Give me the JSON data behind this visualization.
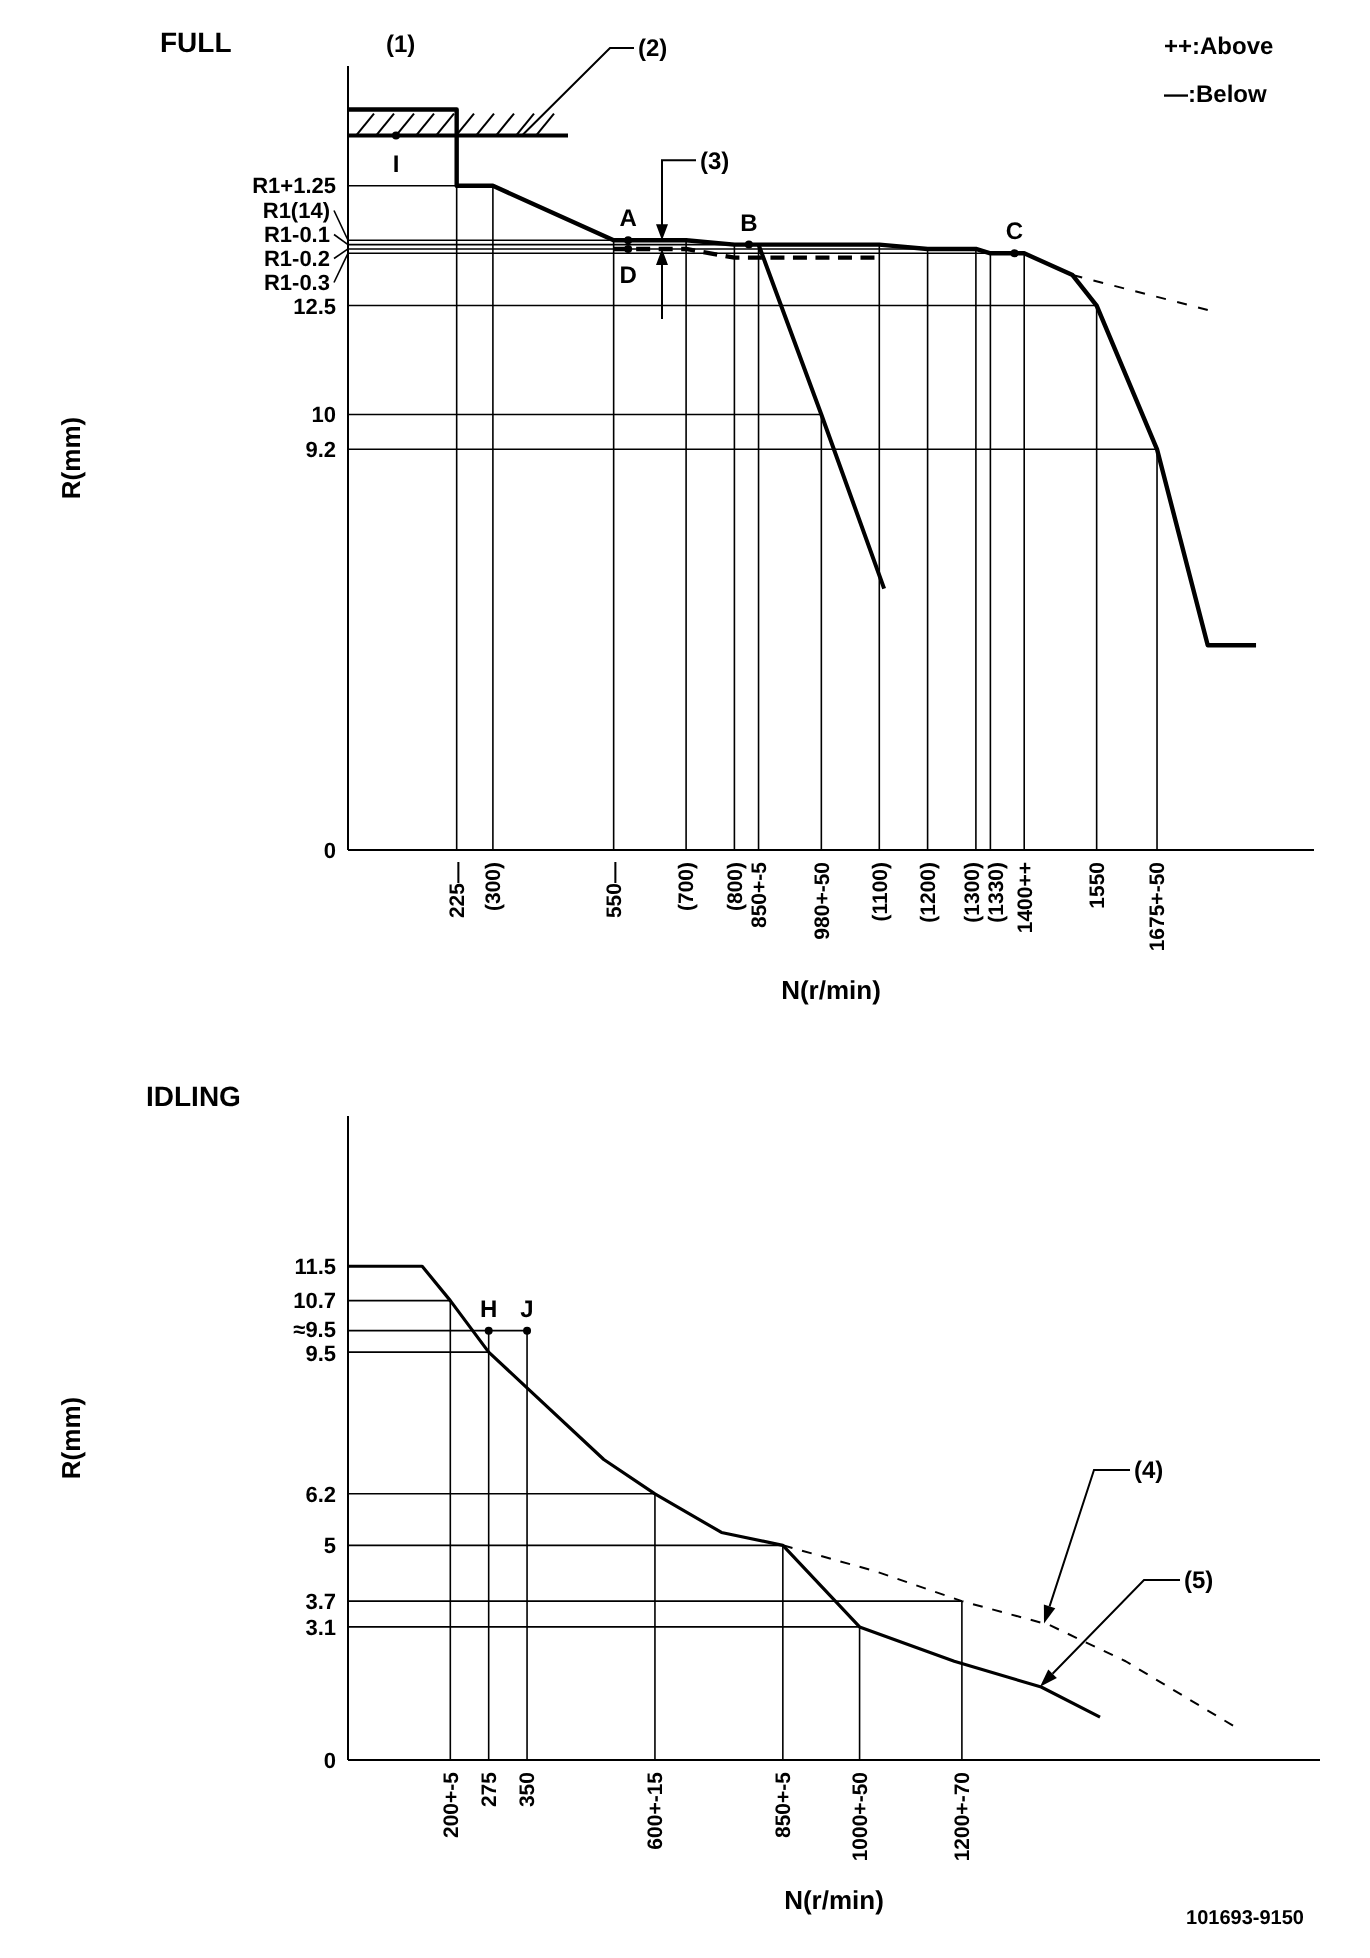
{
  "chart_data": [
    {
      "type": "line",
      "title": "FULL",
      "xlabel": "N(r/min)",
      "ylabel": "R(mm)",
      "xlim": [
        0,
        2000
      ],
      "ylim": [
        0,
        18
      ],
      "xticks": [
        {
          "value": 225,
          "label": "225—"
        },
        {
          "value": 300,
          "label": "(300)"
        },
        {
          "value": 550,
          "label": "550—"
        },
        {
          "value": 700,
          "label": "(700)"
        },
        {
          "value": 800,
          "label": "(800)"
        },
        {
          "value": 850,
          "label": "850+-5"
        },
        {
          "value": 980,
          "label": "980+-50"
        },
        {
          "value": 1100,
          "label": "(1100)"
        },
        {
          "value": 1200,
          "label": "(1200)"
        },
        {
          "value": 1300,
          "label": "(1300)"
        },
        {
          "value": 1330,
          "label": "(1330)"
        },
        {
          "value": 1400,
          "label": "1400++"
        },
        1550,
        {
          "value": 1675,
          "label": "1675+-50"
        }
      ],
      "yticks": [
        0,
        9.2,
        10,
        12.5,
        {
          "value": 15.25,
          "label": "R1+1.25"
        }
      ],
      "ref_lines": [
        {
          "axis": "y",
          "value": 14,
          "label": "R1(14)"
        },
        {
          "axis": "y",
          "value": 13.9,
          "label": "R1-0.1"
        },
        {
          "axis": "y",
          "value": 13.8,
          "label": "R1-0.2"
        },
        {
          "axis": "y",
          "value": 13.7,
          "label": "R1-0.3"
        },
        {
          "axis": "y",
          "value": 15.25,
          "label": null
        },
        {
          "axis": "y",
          "value": 12.5,
          "label": null
        },
        {
          "axis": "y",
          "value": 10,
          "label": null
        },
        {
          "axis": "y",
          "value": 9.2,
          "label": null
        },
        {
          "axis": "x",
          "value": 225,
          "label": null
        },
        {
          "axis": "x",
          "value": 300,
          "label": null
        },
        {
          "axis": "x",
          "value": 550,
          "label": null
        },
        {
          "axis": "x",
          "value": 700,
          "label": null
        },
        {
          "axis": "x",
          "value": 800,
          "label": null
        },
        {
          "axis": "x",
          "value": 850,
          "label": null
        },
        {
          "axis": "x",
          "value": 980,
          "label": null
        },
        {
          "axis": "x",
          "value": 1100,
          "label": null
        },
        {
          "axis": "x",
          "value": 1200,
          "label": null
        },
        {
          "axis": "x",
          "value": 1300,
          "label": null
        },
        {
          "axis": "x",
          "value": 1330,
          "label": null
        },
        {
          "axis": "x",
          "value": 1400,
          "label": null
        },
        {
          "axis": "x",
          "value": 1550,
          "label": null
        },
        {
          "axis": "x",
          "value": 1675,
          "label": null
        }
      ],
      "series": [
        {
          "color": "#000000",
          "line_style": "solid",
          "x": [
            0,
            225,
            225,
            300,
            550,
            700,
            800,
            1100,
            1200,
            1300,
            1330,
            1400,
            1500,
            1550,
            1675,
            1780,
            1880
          ],
          "values": [
            17,
            17,
            15.25,
            15.25,
            14,
            14,
            13.9,
            13.9,
            13.8,
            13.8,
            13.7,
            13.7,
            13.2,
            12.5,
            9.2,
            4.7,
            4.7
          ]
        },
        {
          "color": "#000000",
          "line_style": "solid",
          "x": [
            850,
            980,
            1110
          ],
          "values": [
            13.9,
            10,
            6
          ]
        },
        {
          "color": "#000000",
          "line_style": "dashed",
          "x": [
            550,
            700,
            800,
            1090
          ],
          "values": [
            13.8,
            13.8,
            13.6,
            13.6
          ]
        },
        {
          "color": "#000000",
          "line_style": "dashed",
          "x": [
            1500,
            1780
          ],
          "values": [
            13.2,
            12.4
          ]
        }
      ],
      "annotations": [
        "(1)",
        "++:Above",
        "—:Below",
        "(2)",
        "I",
        "(3)",
        {
          "text": "A",
          "x": 580,
          "y": 14
        },
        {
          "text": "B",
          "x": 830,
          "y": 13.9
        },
        {
          "text": "C",
          "x": 1380,
          "y": 13.7
        },
        {
          "text": "D",
          "x": 580,
          "y": 13.8
        }
      ]
    },
    {
      "type": "line",
      "title": "IDLING",
      "xlabel": "N(r/min)",
      "ylabel": "R(mm)",
      "xlim": [
        0,
        1900
      ],
      "ylim": [
        0,
        15
      ],
      "xticks": [
        {
          "value": 200,
          "label": "200+-5"
        },
        275,
        350,
        {
          "value": 600,
          "label": "600+-15"
        },
        {
          "value": 850,
          "label": "850+-5"
        },
        {
          "value": 1000,
          "label": "1000+-50"
        },
        {
          "value": 1200,
          "label": "1200+-70"
        }
      ],
      "yticks": [
        0,
        3.1,
        3.7,
        5,
        6.2,
        9.5,
        10.7,
        11.5
      ],
      "ref_lines": [
        {
          "axis": "y",
          "value": 10,
          "label": "≈9.5"
        },
        {
          "axis": "y",
          "value": 10.7,
          "label": null
        },
        {
          "axis": "y",
          "value": 9.5,
          "label": null
        },
        {
          "axis": "y",
          "value": 6.2,
          "label": null
        },
        {
          "axis": "y",
          "value": 5,
          "label": null
        },
        {
          "axis": "y",
          "value": 3.7,
          "label": null
        },
        {
          "axis": "y",
          "value": 3.1,
          "label": null
        },
        {
          "axis": "x",
          "value": 200,
          "label": null
        },
        {
          "axis": "x",
          "value": 275,
          "label": null
        },
        {
          "axis": "x",
          "value": 350,
          "label": null
        },
        {
          "axis": "x",
          "value": 600,
          "label": null
        },
        {
          "axis": "x",
          "value": 850,
          "label": null
        },
        {
          "axis": "x",
          "value": 1000,
          "label": null
        },
        {
          "axis": "x",
          "value": 1200,
          "label": null
        }
      ],
      "series": [
        {
          "color": "#000000",
          "line_style": "solid",
          "x": [
            0,
            145,
            200,
            275,
            500,
            600,
            730,
            850,
            1000,
            1185,
            1355,
            1470
          ],
          "values": [
            11.5,
            11.5,
            10.7,
            9.5,
            7.0,
            6.2,
            5.3,
            5.0,
            3.1,
            2.3,
            1.7,
            1.0
          ]
        },
        {
          "color": "#000000",
          "line_style": "dashed",
          "x": [
            850,
            1030,
            1200,
            1370,
            1520,
            1730
          ],
          "values": [
            5.0,
            4.4,
            3.7,
            3.15,
            2.3,
            0.8
          ]
        }
      ],
      "annotations": [
        {
          "text": "H",
          "x": 275,
          "y": 10
        },
        {
          "text": "J",
          "x": 350,
          "y": 10
        },
        "(4)",
        "(5)",
        "101693-9150"
      ]
    }
  ]
}
